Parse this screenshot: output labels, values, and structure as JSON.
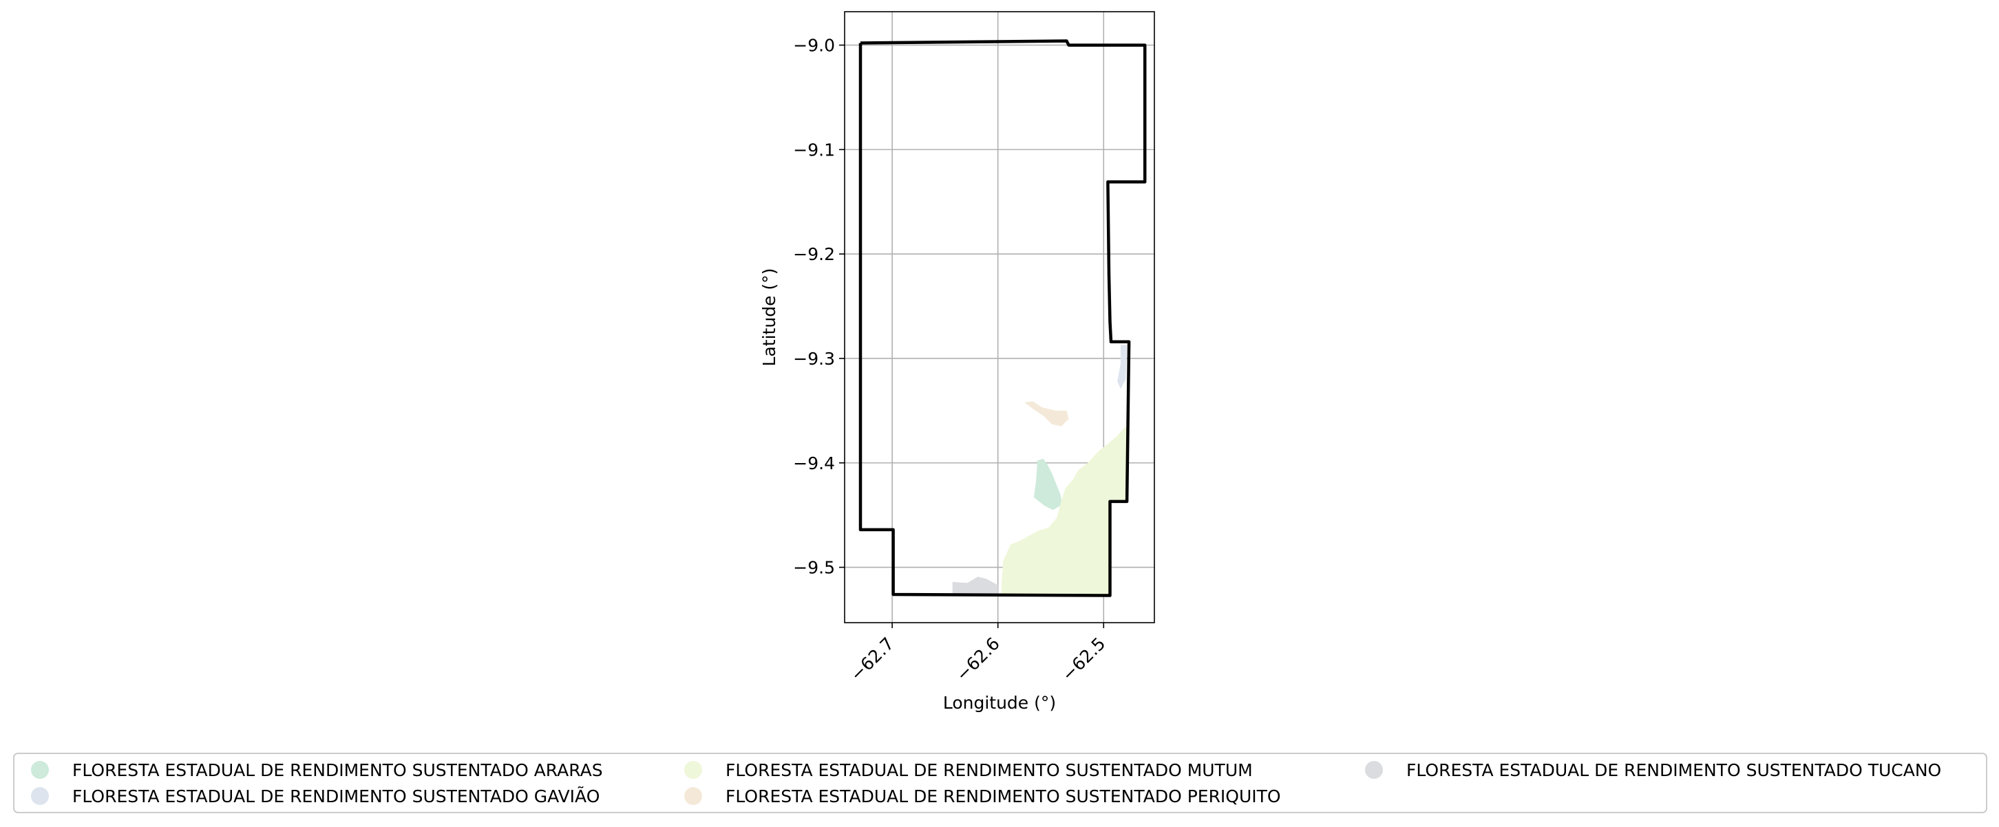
{
  "chart_data": {
    "type": "map",
    "title": "",
    "xlabel": "Longitude (°)",
    "ylabel": "Latitude (°)",
    "xlim": [
      -62.745,
      -62.452
    ],
    "ylim": [
      -9.553,
      -8.968
    ],
    "grid": true,
    "x_ticks": [
      {
        "value": -62.7,
        "label": "−62.7"
      },
      {
        "value": -62.6,
        "label": "−62.6"
      },
      {
        "value": -62.5,
        "label": "−62.5"
      }
    ],
    "y_ticks": [
      {
        "value": -9.0,
        "label": "−9.0"
      },
      {
        "value": -9.1,
        "label": "−9.1"
      },
      {
        "value": -9.2,
        "label": "−9.2"
      },
      {
        "value": -9.3,
        "label": "−9.3"
      },
      {
        "value": -9.4,
        "label": "−9.4"
      },
      {
        "value": -9.5,
        "label": "−9.5"
      }
    ],
    "boundary": {
      "color": "#000000",
      "points": [
        [
          -62.73,
          -8.998
        ],
        [
          -62.535,
          -8.996
        ],
        [
          -62.533,
          -9.0
        ],
        [
          -62.461,
          -9.0
        ],
        [
          -62.461,
          -9.131
        ],
        [
          -62.496,
          -9.131
        ],
        [
          -62.495,
          -9.22
        ],
        [
          -62.494,
          -9.265
        ],
        [
          -62.493,
          -9.284
        ],
        [
          -62.476,
          -9.284
        ],
        [
          -62.478,
          -9.437
        ],
        [
          -62.494,
          -9.437
        ],
        [
          -62.494,
          -9.527
        ],
        [
          -62.699,
          -9.526
        ],
        [
          -62.699,
          -9.464
        ],
        [
          -62.73,
          -9.464
        ],
        [
          -62.73,
          -8.998
        ]
      ]
    },
    "areas": [
      {
        "name": "FLORESTA ESTADUAL DE RENDIMENTO SUSTENTADO ARARAS",
        "color": "#cdeadb",
        "points": [
          [
            -62.563,
            -9.398
          ],
          [
            -62.557,
            -9.396
          ],
          [
            -62.553,
            -9.402
          ],
          [
            -62.549,
            -9.41
          ],
          [
            -62.545,
            -9.42
          ],
          [
            -62.541,
            -9.43
          ],
          [
            -62.539,
            -9.44
          ],
          [
            -62.548,
            -9.445
          ],
          [
            -62.556,
            -9.441
          ],
          [
            -62.566,
            -9.433
          ],
          [
            -62.564,
            -9.418
          ],
          [
            -62.563,
            -9.405
          ]
        ]
      },
      {
        "name": "FLORESTA ESTADUAL DE RENDIMENTO SUSTENTADO GAVIÃO",
        "color": "#dde4ee",
        "points": [
          [
            -62.484,
            -9.287
          ],
          [
            -62.478,
            -9.287
          ],
          [
            -62.479,
            -9.32
          ],
          [
            -62.484,
            -9.329
          ],
          [
            -62.487,
            -9.322
          ],
          [
            -62.484,
            -9.305
          ]
        ]
      },
      {
        "name": "FLORESTA ESTADUAL DE RENDIMENTO SUSTENTADO MUTUM",
        "color": "#eef7d9",
        "points": [
          [
            -62.479,
            -9.365
          ],
          [
            -62.488,
            -9.375
          ],
          [
            -62.496,
            -9.382
          ],
          [
            -62.504,
            -9.388
          ],
          [
            -62.515,
            -9.4
          ],
          [
            -62.524,
            -9.407
          ],
          [
            -62.529,
            -9.416
          ],
          [
            -62.536,
            -9.424
          ],
          [
            -62.54,
            -9.436
          ],
          [
            -62.544,
            -9.452
          ],
          [
            -62.552,
            -9.462
          ],
          [
            -62.562,
            -9.465
          ],
          [
            -62.578,
            -9.474
          ],
          [
            -62.588,
            -9.478
          ],
          [
            -62.595,
            -9.494
          ],
          [
            -62.596,
            -9.507
          ],
          [
            -62.597,
            -9.526
          ],
          [
            -62.494,
            -9.527
          ],
          [
            -62.494,
            -9.437
          ],
          [
            -62.478,
            -9.437
          ],
          [
            -62.477,
            -9.38
          ]
        ]
      },
      {
        "name": "FLORESTA ESTADUAL DE RENDIMENTO SUSTENTADO PERIQUITO",
        "color": "#f4e9d9",
        "points": [
          [
            -62.575,
            -9.342
          ],
          [
            -62.567,
            -9.341
          ],
          [
            -62.558,
            -9.347
          ],
          [
            -62.545,
            -9.35
          ],
          [
            -62.535,
            -9.35
          ],
          [
            -62.533,
            -9.358
          ],
          [
            -62.54,
            -9.365
          ],
          [
            -62.549,
            -9.363
          ],
          [
            -62.557,
            -9.355
          ],
          [
            -62.566,
            -9.349
          ]
        ]
      },
      {
        "name": "FLORESTA ESTADUAL DE RENDIMENTO SUSTENTADO TUCANO",
        "color": "#dadcdf",
        "points": [
          [
            -62.643,
            -9.514
          ],
          [
            -62.629,
            -9.515
          ],
          [
            -62.619,
            -9.509
          ],
          [
            -62.611,
            -9.511
          ],
          [
            -62.6,
            -9.517
          ],
          [
            -62.6,
            -9.526
          ],
          [
            -62.643,
            -9.526
          ]
        ]
      }
    ],
    "legend": {
      "placement": "bottom",
      "columns": 3,
      "items": [
        {
          "label": "FLORESTA ESTADUAL DE RENDIMENTO SUSTENTADO ARARAS",
          "color": "#cdeadb"
        },
        {
          "label": "FLORESTA ESTADUAL DE RENDIMENTO SUSTENTADO GAVIÃO",
          "color": "#dde4ee"
        },
        {
          "label": "FLORESTA ESTADUAL DE RENDIMENTO SUSTENTADO MUTUM",
          "color": "#eef7d9"
        },
        {
          "label": "FLORESTA ESTADUAL DE RENDIMENTO SUSTENTADO PERIQUITO",
          "color": "#f4e9d9"
        },
        {
          "label": "FLORESTA ESTADUAL DE RENDIMENTO SUSTENTADO TUCANO",
          "color": "#dadcdf"
        }
      ]
    }
  }
}
